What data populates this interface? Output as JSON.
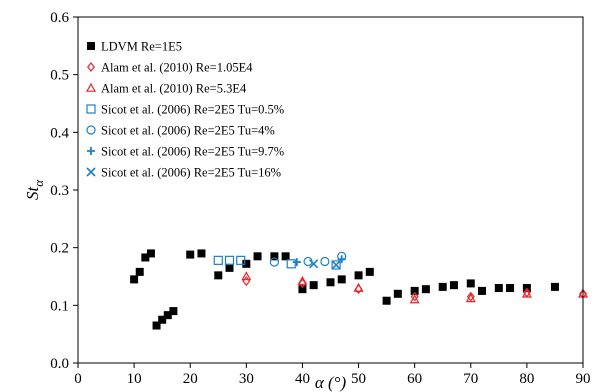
{
  "chart_data": {
    "type": "scatter",
    "title": "",
    "xlabel": "α (°)",
    "ylabel": "St_α",
    "xlim": [
      0,
      90
    ],
    "ylim": [
      0,
      0.6
    ],
    "x_ticks": [
      0,
      10,
      20,
      30,
      40,
      50,
      60,
      70,
      80,
      90
    ],
    "y_ticks": [
      0.0,
      0.1,
      0.2,
      0.3,
      0.4,
      0.5,
      0.6
    ],
    "x_tick_labels": [
      "0",
      "10",
      "20",
      "30",
      "40",
      "50",
      "60",
      "70",
      "80",
      "90"
    ],
    "y_tick_labels": [
      "0.0",
      "0.1",
      "0.2",
      "0.3",
      "0.4",
      "0.5",
      "0.6"
    ],
    "grid": false,
    "legend_position": "top-left",
    "series": [
      {
        "name": "LDVM Re=1E5",
        "marker": "filled-square",
        "color": "#000000",
        "points": [
          [
            10,
            0.145
          ],
          [
            11,
            0.158
          ],
          [
            12,
            0.183
          ],
          [
            13,
            0.19
          ],
          [
            14,
            0.065
          ],
          [
            15,
            0.075
          ],
          [
            16,
            0.083
          ],
          [
            17,
            0.09
          ],
          [
            20,
            0.188
          ],
          [
            22,
            0.19
          ],
          [
            25,
            0.152
          ],
          [
            27,
            0.165
          ],
          [
            30,
            0.172
          ],
          [
            32,
            0.185
          ],
          [
            35,
            0.185
          ],
          [
            37,
            0.185
          ],
          [
            40,
            0.128
          ],
          [
            42,
            0.135
          ],
          [
            45,
            0.14
          ],
          [
            47,
            0.145
          ],
          [
            50,
            0.152
          ],
          [
            52,
            0.158
          ],
          [
            55,
            0.108
          ],
          [
            57,
            0.12
          ],
          [
            60,
            0.125
          ],
          [
            62,
            0.128
          ],
          [
            65,
            0.132
          ],
          [
            67,
            0.135
          ],
          [
            70,
            0.138
          ],
          [
            72,
            0.125
          ],
          [
            75,
            0.13
          ],
          [
            77,
            0.13
          ],
          [
            80,
            0.13
          ],
          [
            85,
            0.132
          ]
        ]
      },
      {
        "name": "Alam et al. (2010) Re=1.05E4",
        "marker": "diamond",
        "color": "#e8232b",
        "points": [
          [
            30,
            0.142
          ],
          [
            40,
            0.138
          ],
          [
            50,
            0.128
          ],
          [
            60,
            0.115
          ],
          [
            70,
            0.115
          ],
          [
            80,
            0.122
          ],
          [
            90,
            0.12
          ]
        ]
      },
      {
        "name": "Alam et al. (2010) Re=5.3E4",
        "marker": "triangle",
        "color": "#e8232b",
        "points": [
          [
            30,
            0.15
          ],
          [
            40,
            0.142
          ],
          [
            50,
            0.13
          ],
          [
            60,
            0.11
          ],
          [
            70,
            0.112
          ],
          [
            80,
            0.12
          ],
          [
            90,
            0.12
          ]
        ]
      },
      {
        "name": "Sicot et al. (2006) Re=2E5 Tu=0.5%",
        "marker": "square",
        "color": "#1f7fc8",
        "points": [
          [
            25,
            0.178
          ],
          [
            27,
            0.178
          ],
          [
            29,
            0.178
          ],
          [
            38,
            0.172
          ],
          [
            46,
            0.17
          ]
        ]
      },
      {
        "name": "Sicot et al.  (2006) Re=2E5 Tu=4%",
        "marker": "circle",
        "color": "#1f7fc8",
        "points": [
          [
            35,
            0.175
          ],
          [
            41,
            0.176
          ],
          [
            44,
            0.176
          ],
          [
            47,
            0.185
          ]
        ]
      },
      {
        "name": "Sicot et al.  (2006) Re=2E5 Tu=9.7%",
        "marker": "plus",
        "color": "#1f7fc8",
        "points": [
          [
            39,
            0.175
          ],
          [
            47,
            0.18
          ]
        ]
      },
      {
        "name": "Sicot et al.  (2006) Re=2E5 Tu=16%",
        "marker": "x",
        "color": "#1f7fc8",
        "points": [
          [
            42,
            0.172
          ],
          [
            46,
            0.17
          ]
        ]
      }
    ]
  }
}
